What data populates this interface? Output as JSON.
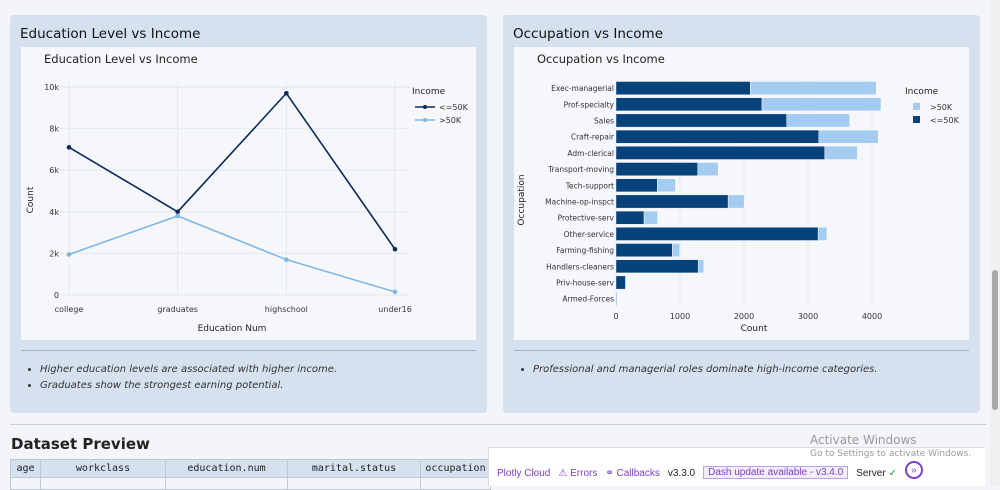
{
  "left_card": {
    "title": "Education Level vs Income",
    "notes": [
      "Higher education levels are associated with higher income.",
      "Graduates show the strongest earning potential."
    ]
  },
  "right_card": {
    "title": "Occupation vs Income",
    "notes": [
      "Professional and managerial roles dominate high-income categories."
    ]
  },
  "chart_data": [
    {
      "type": "line",
      "title": "Education Level vs Income",
      "xlabel": "Education Num",
      "ylabel": "Count",
      "categories": [
        "college",
        "graduates",
        "highschool",
        "under16"
      ],
      "ylim": [
        0,
        10000
      ],
      "yticks": [
        "0",
        "2k",
        "4k",
        "6k",
        "8k",
        "10k"
      ],
      "grid": true,
      "legend_title": "Income",
      "legend_position": "top-right",
      "series": [
        {
          "name": "<=50K",
          "color": "#0d2a5c",
          "values": [
            7100,
            4000,
            9700,
            2200
          ]
        },
        {
          "name": ">50K",
          "color": "#7fb8e6",
          "values": [
            1950,
            3800,
            1700,
            150
          ]
        }
      ]
    },
    {
      "type": "bar",
      "orientation": "horizontal",
      "stacked": true,
      "title": "Occupation vs Income",
      "xlabel": "Count",
      "ylabel": "Occupation",
      "xlim": [
        0,
        4200
      ],
      "xticks": [
        "0",
        "1000",
        "2000",
        "3000",
        "4000"
      ],
      "grid": true,
      "legend_title": "Income",
      "legend_position": "top-right",
      "categories": [
        "Exec-managerial",
        "Prof-specialty",
        "Sales",
        "Craft-repair",
        "Adm-clerical",
        "Transport-moving",
        "Tech-support",
        "Machine-op-inspct",
        "Protective-serv",
        "Other-service",
        "Farming-fishing",
        "Handlers-cleaners",
        "Priv-house-serv",
        "Armed-Forces"
      ],
      "series": [
        {
          "name": "<=50K",
          "color": "#08427b",
          "values": [
            2098,
            2281,
            2667,
            3170,
            3263,
            1277,
            645,
            1752,
            438,
            3158,
            879,
            1284,
            148,
            8
          ]
        },
        {
          "name": ">50K",
          "color": "#a3ccf0",
          "values": [
            1968,
            1859,
            983,
            929,
            507,
            320,
            283,
            250,
            211,
            137,
            115,
            86,
            1,
            1
          ]
        }
      ],
      "legend_order": [
        ">50K",
        "<=50K"
      ]
    }
  ],
  "preview": {
    "title": "Dataset Preview",
    "columns": [
      "age",
      "workclass",
      "education.num",
      "marital.status",
      "occupation"
    ]
  },
  "debug_bar": {
    "cloud": "Plotly Cloud",
    "errors": "Errors",
    "callbacks": "Callbacks",
    "version": "v3.3.0",
    "update": "Dash update available - v3.4.0",
    "server": "Server"
  },
  "watermark": {
    "line1": "Activate Windows",
    "line2": "Go to Settings to activate Windows."
  }
}
